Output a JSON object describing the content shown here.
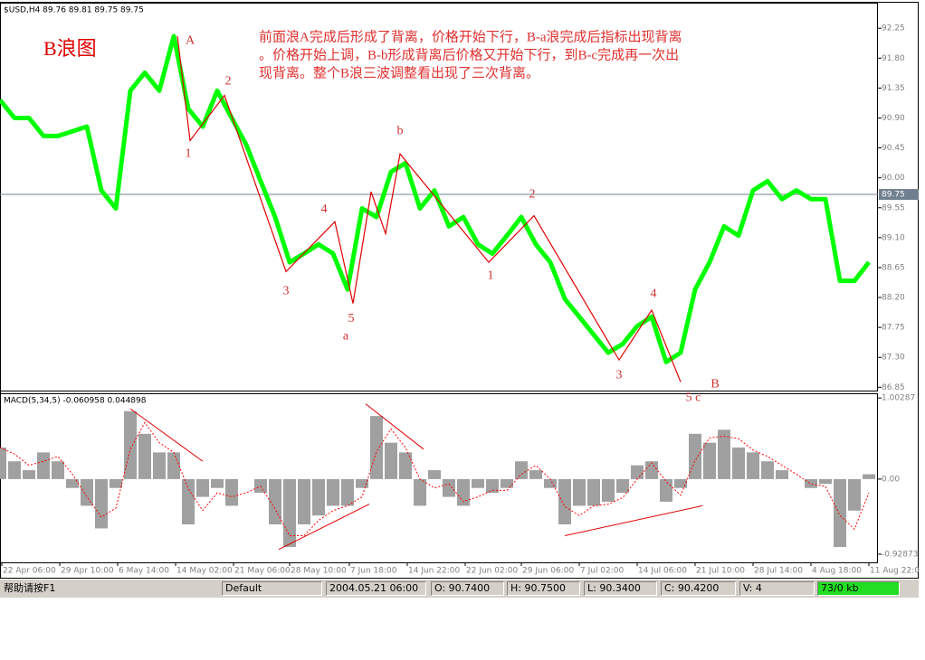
{
  "chart_data": [
    {
      "type": "line",
      "header": "$USD,H4 89.76 89.81 89.75 89.75",
      "title": "B浪图",
      "note_lines": [
        "前面浪A完成后形成了背离，价格开始下行，B-a浪完成后指标出现背离",
        "。价格开始上调，B-b形成背离后价格又开始下行，到B-c完成再一次出",
        "现背离。整个B浪三波调整看出现了三次背离。"
      ],
      "color": "#00ff00",
      "x": [
        0,
        8,
        16,
        24,
        32,
        40,
        48,
        56,
        64,
        72,
        80,
        88,
        96,
        104,
        112,
        120,
        128,
        136,
        144,
        152,
        160,
        168,
        176,
        184,
        192,
        200,
        208,
        216,
        224,
        232,
        240,
        248,
        256,
        264,
        272,
        280,
        288,
        296,
        304,
        312,
        320,
        328,
        336,
        344,
        352,
        360,
        368,
        376,
        384,
        392,
        400,
        408,
        416,
        424,
        432,
        440,
        448,
        456,
        464,
        472,
        480
      ],
      "values": [
        91.17,
        90.9,
        90.9,
        90.63,
        90.63,
        90.7,
        90.77,
        89.81,
        89.54,
        91.31,
        91.58,
        91.31,
        92.13,
        91.04,
        90.77,
        91.31,
        90.9,
        90.5,
        89.95,
        89.41,
        88.73,
        88.86,
        89.0,
        88.86,
        88.32,
        89.54,
        89.41,
        90.09,
        90.22,
        89.54,
        89.81,
        89.27,
        89.41,
        89.0,
        88.86,
        89.13,
        89.41,
        89.0,
        88.73,
        88.18,
        87.91,
        87.64,
        87.37,
        87.5,
        87.77,
        87.91,
        87.23,
        87.37,
        88.32,
        88.73,
        89.27,
        89.13,
        89.81,
        89.95,
        89.68,
        89.81,
        89.68,
        89.68,
        88.45,
        88.45,
        88.73
      ],
      "wave_line": {
        "color": "#e00000",
        "x": [
          98,
          105,
          124,
          158,
          185,
          195,
          205,
          213,
          221,
          270,
          295,
          342,
          360,
          376
        ],
        "values": [
          92.13,
          90.56,
          91.24,
          88.59,
          89.34,
          88.11,
          89.79,
          89.16,
          90.36,
          88.73,
          89.43,
          87.26,
          88.01,
          86.93
        ]
      },
      "annotations": [
        {
          "text": "A",
          "x": 105,
          "y": 92.06
        },
        {
          "text": "1",
          "x": 104,
          "y": 90.36
        },
        {
          "text": "2",
          "x": 126,
          "y": 91.45
        },
        {
          "text": "3",
          "x": 158,
          "y": 88.29
        },
        {
          "text": "4",
          "x": 179,
          "y": 89.52
        },
        {
          "text": "5",
          "x": 194,
          "y": 87.88
        },
        {
          "text": "a",
          "x": 191,
          "y": 87.61
        },
        {
          "text": "b",
          "x": 221,
          "y": 90.7
        },
        {
          "text": "2",
          "x": 294,
          "y": 89.75
        },
        {
          "text": "1",
          "x": 271,
          "y": 88.52
        },
        {
          "text": "3",
          "x": 342,
          "y": 87.03
        },
        {
          "text": "4",
          "x": 361,
          "y": 88.25
        },
        {
          "text": "5 c",
          "x": 383,
          "y": 86.69
        },
        {
          "text": "B",
          "x": 395,
          "y": 86.89
        }
      ],
      "last_price": 89.75,
      "xlim": [
        0,
        485
      ],
      "ylim": [
        86.8,
        92.62
      ],
      "yticks": [
        92.25,
        {
          "value": 91.8,
          "label": "91.80"
        },
        91.35,
        {
          "value": 90.9,
          "label": "90.90"
        },
        90.45,
        {
          "value": 90,
          "label": "90.00"
        },
        89.55,
        {
          "value": 89.1,
          "label": "89.10"
        },
        88.65,
        {
          "value": 88.2,
          "label": "88.20"
        },
        87.75,
        {
          "value": 87.3,
          "label": "87.30"
        },
        86.85
      ]
    },
    {
      "type": "bar",
      "header": "MACD(5,34,5) -0.060958 0.044898",
      "color": "#a0a0a0",
      "x": [
        0,
        8,
        16,
        24,
        32,
        40,
        48,
        56,
        64,
        72,
        80,
        88,
        96,
        104,
        112,
        120,
        128,
        136,
        144,
        152,
        160,
        168,
        176,
        184,
        192,
        200,
        208,
        216,
        224,
        232,
        240,
        248,
        256,
        264,
        272,
        280,
        288,
        296,
        304,
        312,
        320,
        328,
        336,
        344,
        352,
        360,
        368,
        376,
        384,
        392,
        400,
        408,
        416,
        424,
        432,
        440,
        448,
        456,
        464,
        472,
        480
      ],
      "values": [
        0.39,
        0.22,
        0.11,
        0.33,
        0.22,
        -0.11,
        -0.33,
        -0.61,
        -0.11,
        0.84,
        0.56,
        0.33,
        0.33,
        -0.56,
        -0.22,
        -0.11,
        -0.33,
        0,
        -0.17,
        -0.56,
        -0.84,
        -0.56,
        -0.45,
        -0.33,
        -0.33,
        -0.11,
        0.78,
        0.45,
        0.33,
        -0.33,
        0.11,
        -0.22,
        -0.33,
        -0.11,
        -0.17,
        -0.11,
        0.22,
        0.11,
        -0.11,
        -0.56,
        -0.33,
        -0.33,
        -0.28,
        -0.17,
        0.17,
        0.22,
        -0.28,
        -0.11,
        0.56,
        0.45,
        0.61,
        0.39,
        0.33,
        0.22,
        0.11,
        0,
        -0.11,
        -0.06,
        -0.84,
        -0.39,
        0.06
      ],
      "signal": {
        "color": "#ff0000",
        "values": [
          0.39,
          0.31,
          0.17,
          0.22,
          0.28,
          0.06,
          -0.22,
          -0.47,
          -0.36,
          0.37,
          0.7,
          0.45,
          0.33,
          -0.12,
          -0.39,
          -0.17,
          -0.22,
          -0.17,
          -0.09,
          -0.37,
          -0.7,
          -0.7,
          -0.51,
          -0.39,
          -0.33,
          -0.22,
          0.34,
          0.62,
          0.39,
          0,
          -0.11,
          -0.06,
          -0.28,
          -0.22,
          -0.14,
          -0.14,
          0.06,
          0.17,
          0,
          -0.34,
          -0.45,
          -0.33,
          -0.31,
          -0.23,
          0,
          0.2,
          -0.03,
          -0.2,
          0.23,
          0.51,
          0.53,
          0.5,
          0.36,
          0.28,
          0.17,
          0.06,
          -0.06,
          -0.09,
          -0.45,
          -0.62,
          -0.17
        ]
      },
      "divergence_color": "#e00000",
      "divergence_lines": [
        {
          "x": [
            72,
            112
          ],
          "values": [
            0.87,
            0.22
          ]
        },
        {
          "x": [
            154,
            204
          ],
          "values": [
            -0.87,
            -0.31
          ]
        },
        {
          "x": [
            202,
            234
          ],
          "values": [
            0.93,
            0.37
          ]
        },
        {
          "x": [
            312,
            388
          ],
          "values": [
            -0.7,
            -0.33
          ]
        }
      ],
      "xlim": [
        0,
        485
      ],
      "ylim": [
        -1.03,
        1.05
      ],
      "yticks": [
        1.00287,
        {
          "value": 0,
          "label": "0.00"
        },
        -0.92873
      ],
      "xticks": [
        {
          "value": 1,
          "label": "22 Apr 06:00"
        },
        {
          "value": 33,
          "label": "29 Apr 10:00"
        },
        {
          "value": 65,
          "label": "6 May 14:00"
        },
        {
          "value": 97,
          "label": "14 May 02:00"
        },
        {
          "value": 129,
          "label": "21 May 06:00"
        },
        {
          "value": 160,
          "label": "28 May 10:00"
        },
        {
          "value": 193,
          "label": "7 Jun 18:00"
        },
        {
          "value": 225,
          "label": "14 Jun 22:00"
        },
        {
          "value": 257,
          "label": "22 Jun 02:00"
        },
        {
          "value": 288,
          "label": "29 Jun 06:00"
        },
        {
          "value": 320,
          "label": "7 Jul 02:00"
        },
        {
          "value": 352,
          "label": "14 Jul 06:00"
        },
        {
          "value": 384,
          "label": "21 Jul 10:00"
        },
        {
          "value": 416,
          "label": "28 Jul 14:00"
        },
        {
          "value": 448,
          "label": "4 Aug 18:00"
        },
        {
          "value": 480,
          "label": "11 Aug 22:00"
        }
      ]
    }
  ],
  "status_bar": {
    "help": "帮助请按F1",
    "profile": "Default",
    "time": "2004.05.21 06:00",
    "open": "O: 90.7400",
    "high": "H: 90.7500",
    "low": "L: 90.3400",
    "close": "C: 90.4200",
    "volume": "V: 4",
    "traffic": "73/0 kb"
  }
}
